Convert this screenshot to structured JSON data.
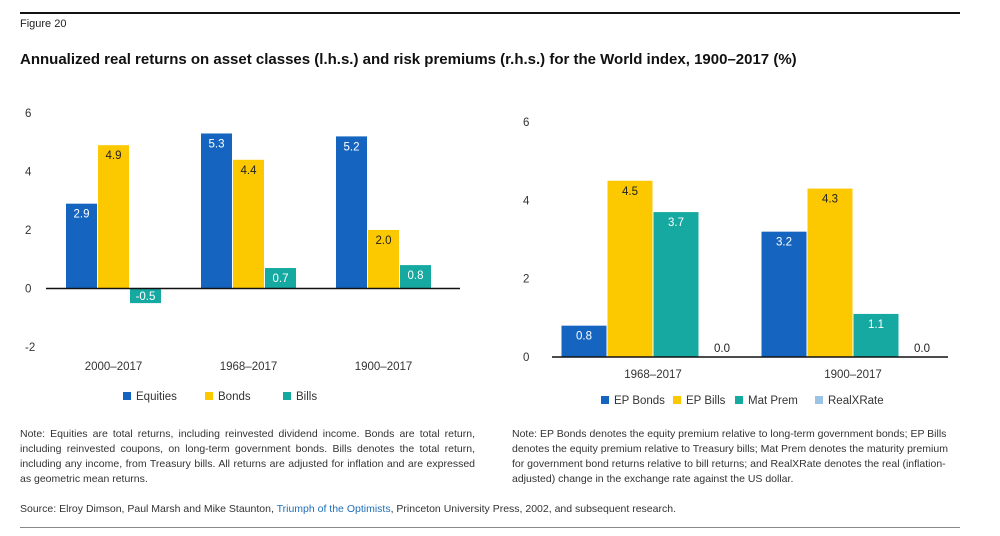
{
  "figure_label": "Figure 20",
  "title": "Annualized real returns on asset classes (l.h.s.) and risk premiums (r.h.s.) for the World index, 1900–2017 (%)",
  "colors": {
    "blue": "#1565c0",
    "yellow": "#fcc800",
    "teal": "#16a9a2",
    "lightblue": "#9cc3e6"
  },
  "chart_data": [
    {
      "type": "bar",
      "title": "",
      "xlabel": "",
      "ylabel": "",
      "ylim": [
        -2,
        6
      ],
      "yticks": [
        "-2",
        "0",
        "2",
        "4",
        "6"
      ],
      "categories": [
        "2000–2017",
        "1968–2017",
        "1900–2017"
      ],
      "series": [
        {
          "name": "Equities",
          "color": "#1565c0",
          "values": [
            2.9,
            5.3,
            5.2
          ],
          "labels": [
            "2.9",
            "5.3",
            "5.2"
          ]
        },
        {
          "name": "Bonds",
          "color": "#fcc800",
          "values": [
            4.9,
            4.4,
            2.0
          ],
          "labels": [
            "4.9",
            "4.4",
            "2.0"
          ]
        },
        {
          "name": "Bills",
          "color": "#16a9a2",
          "values": [
            -0.5,
            0.7,
            0.8
          ],
          "labels": [
            "-0.5",
            "0.7",
            "0.8"
          ]
        }
      ]
    },
    {
      "type": "bar",
      "title": "",
      "xlabel": "",
      "ylabel": "",
      "ylim": [
        0,
        6
      ],
      "yticks": [
        "0",
        "2",
        "4",
        "6"
      ],
      "categories": [
        "1968–2017",
        "1900–2017"
      ],
      "series": [
        {
          "name": "EP Bonds",
          "color": "#1565c0",
          "values": [
            0.8,
            3.2
          ],
          "labels": [
            "0.8",
            "3.2"
          ]
        },
        {
          "name": "EP Bills",
          "color": "#fcc800",
          "values": [
            4.5,
            4.3
          ],
          "labels": [
            "4.5",
            "4.3"
          ]
        },
        {
          "name": "Mat Prem",
          "color": "#16a9a2",
          "values": [
            3.7,
            1.1
          ],
          "labels": [
            "3.7",
            "1.1"
          ]
        },
        {
          "name": "RealXRate",
          "color": "#9cc3e6",
          "values": [
            0.0,
            0.0
          ],
          "labels": [
            "0.0",
            "0.0"
          ]
        }
      ]
    }
  ],
  "notes": {
    "left": "Note: Equities are total returns, including reinvested dividend income. Bonds are total return, including reinvested coupons, on long-term government bonds. Bills denotes the total return, including any income, from Treasury bills. All returns are adjusted for inflation and are expressed as geometric mean returns.",
    "right": "Note: EP Bonds denotes the equity premium relative to long-term government bonds; EP Bills denotes the equity premium relative to Treasury bills; Mat Prem denotes the maturity premium for government bond returns relative to bill returns; and RealXRate denotes the real (inflation-adjusted) change in the exchange rate against the US dollar."
  },
  "source": {
    "prefix": "Source: Elroy Dimson, Paul Marsh and Mike Staunton, ",
    "link": "Triumph of the Optimists",
    "suffix": ", Princeton University Press, 2002, and subsequent research."
  }
}
